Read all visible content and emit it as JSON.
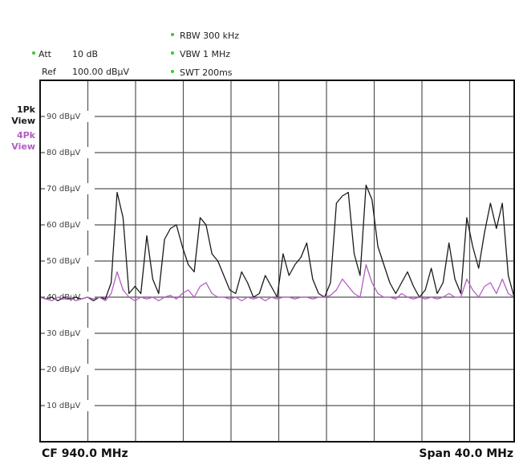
{
  "chart_data": {
    "type": "line",
    "header_left": [
      [
        "Att",
        "10 dB"
      ],
      [
        "Ref",
        "100.00 dBμV"
      ]
    ],
    "header_right": [
      "RBW 300 kHz",
      "VBW 1 MHz",
      "SWT 200ms"
    ],
    "footer_left": "CF 940.0 MHz",
    "footer_right": "Span 40.0 MHz",
    "x": [
      920,
      920.5,
      921,
      921.5,
      922,
      922.5,
      923,
      923.5,
      924,
      924.5,
      925,
      925.5,
      926,
      926.5,
      927,
      927.5,
      928,
      928.5,
      929,
      929.5,
      930,
      930.5,
      931,
      931.5,
      932,
      932.5,
      933,
      933.5,
      934,
      934.5,
      935,
      935.5,
      936,
      936.5,
      937,
      937.5,
      938,
      938.5,
      939,
      939.5,
      940,
      940.5,
      941,
      941.5,
      942,
      942.5,
      943,
      943.5,
      944,
      944.5,
      945,
      945.5,
      946,
      946.5,
      947,
      947.5,
      948,
      948.5,
      949,
      949.5,
      950,
      950.5,
      951,
      951.5,
      952,
      952.5,
      953,
      953.5,
      954,
      954.5,
      955,
      955.5,
      956,
      956.5,
      957,
      957.5,
      958,
      958.5,
      959,
      959.5,
      960
    ],
    "xlim": [
      920,
      960
    ],
    "ylim": [
      0,
      100
    ],
    "yticks": [
      {
        "value": 10,
        "label": "10 dBμV"
      },
      {
        "value": 20,
        "label": "20 dBμV"
      },
      {
        "value": 30,
        "label": "30 dBμV"
      },
      {
        "value": 40,
        "label": "40 dBμV"
      },
      {
        "value": 50,
        "label": "50 dBμV"
      },
      {
        "value": 60,
        "label": "60 dBμV"
      },
      {
        "value": 70,
        "label": "70 dBμV"
      },
      {
        "value": 80,
        "label": "80 dBμV"
      },
      {
        "value": 90,
        "label": "90 dBμV"
      }
    ],
    "grid": true,
    "series": [
      {
        "name": "1Pk View",
        "color": "#1a1a1a",
        "values": [
          40,
          39.5,
          40,
          39,
          40,
          39.5,
          40,
          39.5,
          40,
          39,
          40,
          39.5,
          44,
          69,
          62,
          41,
          43,
          41,
          57,
          45,
          41,
          56,
          59,
          60,
          54,
          49,
          47,
          62,
          60,
          52,
          50,
          46,
          42,
          41,
          47,
          44,
          40,
          41,
          46,
          43,
          40,
          52,
          46,
          49,
          51,
          55,
          45,
          41,
          40,
          44,
          66,
          68,
          69,
          52,
          46,
          71,
          67,
          54,
          49,
          44,
          41,
          44,
          47,
          43,
          40,
          42,
          48,
          41,
          44,
          55,
          45,
          41,
          62,
          54,
          48,
          58,
          66,
          59,
          66,
          46,
          40
        ]
      },
      {
        "name": "4Pk View",
        "color": "#b45cc4",
        "values": [
          40,
          39.5,
          39,
          40,
          39.5,
          40,
          39,
          39.5,
          40,
          39.5,
          40,
          39,
          41,
          47,
          42,
          40,
          39,
          40,
          39.5,
          40,
          39,
          40,
          40.5,
          39.5,
          41,
          42,
          40,
          43,
          44,
          41,
          40,
          40,
          39.5,
          40,
          39,
          40,
          39.5,
          40,
          39,
          40,
          39.5,
          40,
          40,
          39.5,
          40,
          40,
          39.5,
          40,
          40,
          40.5,
          42,
          45,
          43,
          41,
          40,
          49,
          44,
          41,
          40,
          40,
          39.5,
          41,
          40,
          39.5,
          40,
          39.5,
          40,
          39.5,
          40,
          41,
          40,
          40,
          45,
          42,
          40,
          43,
          44,
          41,
          45,
          41,
          40
        ]
      }
    ]
  }
}
